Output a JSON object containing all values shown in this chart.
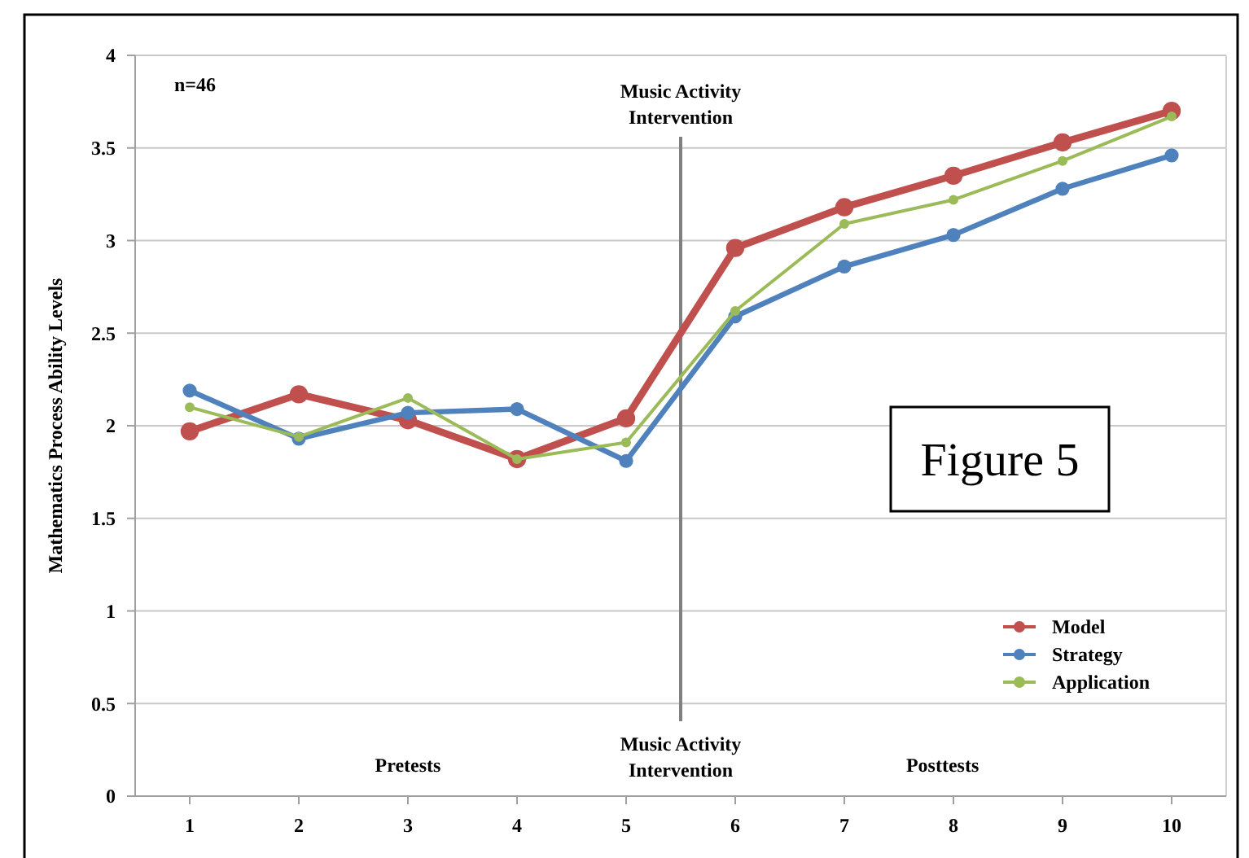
{
  "chart_data": {
    "type": "line",
    "ylabel": "Mathematics Process Ability Levels",
    "x": [
      1,
      2,
      3,
      4,
      5,
      6,
      7,
      8,
      9,
      10
    ],
    "xlim": [
      0.5,
      10.5
    ],
    "xticks": [
      1,
      2,
      3,
      4,
      5,
      6,
      7,
      8,
      9,
      10
    ],
    "ylim": [
      0,
      4
    ],
    "yticks": [
      0,
      0.5,
      1,
      1.5,
      2,
      2.5,
      3,
      3.5,
      4
    ],
    "series": [
      {
        "name": "Model",
        "color": "#c0504d",
        "values": [
          1.97,
          2.17,
          2.03,
          1.82,
          2.04,
          2.96,
          3.18,
          3.35,
          3.53,
          3.7
        ]
      },
      {
        "name": "Strategy",
        "color": "#4f81bd",
        "values": [
          2.19,
          1.93,
          2.07,
          2.09,
          1.81,
          2.59,
          2.86,
          3.03,
          3.28,
          3.46
        ]
      },
      {
        "name": "Application",
        "color": "#9bbb59",
        "values": [
          2.1,
          1.94,
          2.15,
          1.82,
          1.91,
          2.62,
          3.09,
          3.22,
          3.43,
          3.67
        ]
      }
    ],
    "ref_lines": [
      {
        "axis": "x",
        "value": 5.5,
        "label": "Music Activity Intervention",
        "color": "#808080"
      }
    ],
    "annotations": [
      "n=46",
      "Pretests",
      "Music Activity Intervention",
      "Posttests",
      "Figure 5"
    ],
    "grid": "y",
    "legend": "bottom right",
    "marker": "circle",
    "line_style": "solid"
  }
}
